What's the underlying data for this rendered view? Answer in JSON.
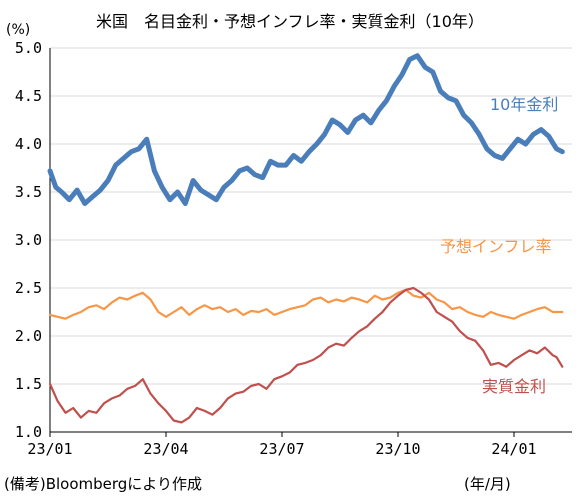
{
  "title": "米国　名目金利・予想インフレ率・実質金利（10年）",
  "unit": "(%)",
  "source": "(備考)Bloombergにより作成",
  "xunit": "(年/月)",
  "chart_data": {
    "type": "line",
    "title": "米国　名目金利・予想インフレ率・実質金利（10年）",
    "ylabel": "(%)",
    "xlabel": "(年/月)",
    "ylim": [
      1.0,
      5.0
    ],
    "yticks": [
      "1.0",
      "1.5",
      "2.0",
      "2.5",
      "3.0",
      "3.5",
      "4.0",
      "4.5",
      "5.0"
    ],
    "xlim": [
      0,
      13.5
    ],
    "xticks": [
      {
        "pos": 0,
        "label": "23/01"
      },
      {
        "pos": 3,
        "label": "23/04"
      },
      {
        "pos": 6,
        "label": "23/07"
      },
      {
        "pos": 9,
        "label": "23/10"
      },
      {
        "pos": 12,
        "label": "24/01"
      }
    ],
    "grid": "horizontal",
    "series": [
      {
        "name": "10年金利",
        "color": "#4a7ebb",
        "x": [
          0,
          0.15,
          0.3,
          0.5,
          0.7,
          0.9,
          1.1,
          1.3,
          1.5,
          1.7,
          1.9,
          2.1,
          2.3,
          2.5,
          2.7,
          2.9,
          3.1,
          3.3,
          3.5,
          3.7,
          3.9,
          4.1,
          4.3,
          4.5,
          4.7,
          4.9,
          5.1,
          5.3,
          5.5,
          5.7,
          5.9,
          6.1,
          6.3,
          6.5,
          6.7,
          6.9,
          7.1,
          7.3,
          7.5,
          7.7,
          7.9,
          8.1,
          8.3,
          8.5,
          8.7,
          8.9,
          9.1,
          9.3,
          9.5,
          9.7,
          9.9,
          10.1,
          10.3,
          10.5,
          10.7,
          10.9,
          11.1,
          11.3,
          11.5,
          11.7,
          11.9,
          12.1,
          12.3,
          12.5,
          12.7,
          12.9,
          13.1,
          13.25
        ],
        "values": [
          3.72,
          3.55,
          3.5,
          3.42,
          3.52,
          3.38,
          3.45,
          3.52,
          3.62,
          3.78,
          3.85,
          3.92,
          3.95,
          4.05,
          3.72,
          3.55,
          3.42,
          3.5,
          3.38,
          3.62,
          3.52,
          3.47,
          3.42,
          3.55,
          3.62,
          3.72,
          3.75,
          3.68,
          3.65,
          3.82,
          3.78,
          3.78,
          3.88,
          3.82,
          3.92,
          4.0,
          4.1,
          4.25,
          4.2,
          4.12,
          4.25,
          4.3,
          4.22,
          4.35,
          4.45,
          4.6,
          4.72,
          4.88,
          4.92,
          4.8,
          4.75,
          4.55,
          4.48,
          4.45,
          4.3,
          4.22,
          4.1,
          3.95,
          3.88,
          3.85,
          3.95,
          4.05,
          4.0,
          4.1,
          4.15,
          4.08,
          3.95,
          3.92
        ]
      },
      {
        "name": "予想インフレ率",
        "color": "#f79646",
        "x": [
          0,
          0.2,
          0.4,
          0.6,
          0.8,
          1.0,
          1.2,
          1.4,
          1.6,
          1.8,
          2.0,
          2.2,
          2.4,
          2.6,
          2.8,
          3.0,
          3.2,
          3.4,
          3.6,
          3.8,
          4.0,
          4.2,
          4.4,
          4.6,
          4.8,
          5.0,
          5.2,
          5.4,
          5.6,
          5.8,
          6.0,
          6.2,
          6.4,
          6.6,
          6.8,
          7.0,
          7.2,
          7.4,
          7.6,
          7.8,
          8.0,
          8.2,
          8.4,
          8.6,
          8.8,
          9.0,
          9.2,
          9.4,
          9.6,
          9.8,
          10.0,
          10.2,
          10.4,
          10.6,
          10.8,
          11.0,
          11.2,
          11.4,
          11.6,
          11.8,
          12.0,
          12.2,
          12.4,
          12.6,
          12.8,
          13.0,
          13.25
        ],
        "values": [
          2.22,
          2.2,
          2.18,
          2.22,
          2.25,
          2.3,
          2.32,
          2.28,
          2.35,
          2.4,
          2.38,
          2.42,
          2.45,
          2.38,
          2.25,
          2.2,
          2.25,
          2.3,
          2.22,
          2.28,
          2.32,
          2.28,
          2.3,
          2.25,
          2.28,
          2.22,
          2.26,
          2.25,
          2.28,
          2.22,
          2.25,
          2.28,
          2.3,
          2.32,
          2.38,
          2.4,
          2.35,
          2.38,
          2.36,
          2.4,
          2.38,
          2.35,
          2.42,
          2.38,
          2.4,
          2.45,
          2.48,
          2.42,
          2.4,
          2.45,
          2.38,
          2.35,
          2.28,
          2.3,
          2.25,
          2.22,
          2.2,
          2.25,
          2.22,
          2.2,
          2.18,
          2.22,
          2.25,
          2.28,
          2.3,
          2.25,
          2.25
        ]
      },
      {
        "name": "実質金利",
        "color": "#c0504d",
        "x": [
          0,
          0.2,
          0.4,
          0.6,
          0.8,
          1.0,
          1.2,
          1.4,
          1.6,
          1.8,
          2.0,
          2.2,
          2.4,
          2.6,
          2.8,
          3.0,
          3.2,
          3.4,
          3.6,
          3.8,
          4.0,
          4.2,
          4.4,
          4.6,
          4.8,
          5.0,
          5.2,
          5.4,
          5.6,
          5.8,
          6.0,
          6.2,
          6.4,
          6.6,
          6.8,
          7.0,
          7.2,
          7.4,
          7.6,
          7.8,
          8.0,
          8.2,
          8.4,
          8.6,
          8.8,
          9.0,
          9.2,
          9.4,
          9.6,
          9.8,
          10.0,
          10.2,
          10.4,
          10.6,
          10.8,
          11.0,
          11.2,
          11.4,
          11.6,
          11.8,
          12.0,
          12.2,
          12.4,
          12.6,
          12.8,
          13.0,
          13.1,
          13.25
        ],
        "values": [
          1.5,
          1.32,
          1.2,
          1.25,
          1.15,
          1.22,
          1.2,
          1.3,
          1.35,
          1.38,
          1.45,
          1.48,
          1.55,
          1.4,
          1.3,
          1.22,
          1.12,
          1.1,
          1.15,
          1.25,
          1.22,
          1.18,
          1.25,
          1.35,
          1.4,
          1.42,
          1.48,
          1.5,
          1.45,
          1.55,
          1.58,
          1.62,
          1.7,
          1.72,
          1.75,
          1.8,
          1.88,
          1.92,
          1.9,
          1.98,
          2.05,
          2.1,
          2.18,
          2.25,
          2.35,
          2.42,
          2.48,
          2.5,
          2.45,
          2.38,
          2.25,
          2.2,
          2.15,
          2.05,
          1.98,
          1.95,
          1.85,
          1.7,
          1.72,
          1.68,
          1.75,
          1.8,
          1.85,
          1.82,
          1.88,
          1.8,
          1.78,
          1.68
        ]
      }
    ]
  }
}
